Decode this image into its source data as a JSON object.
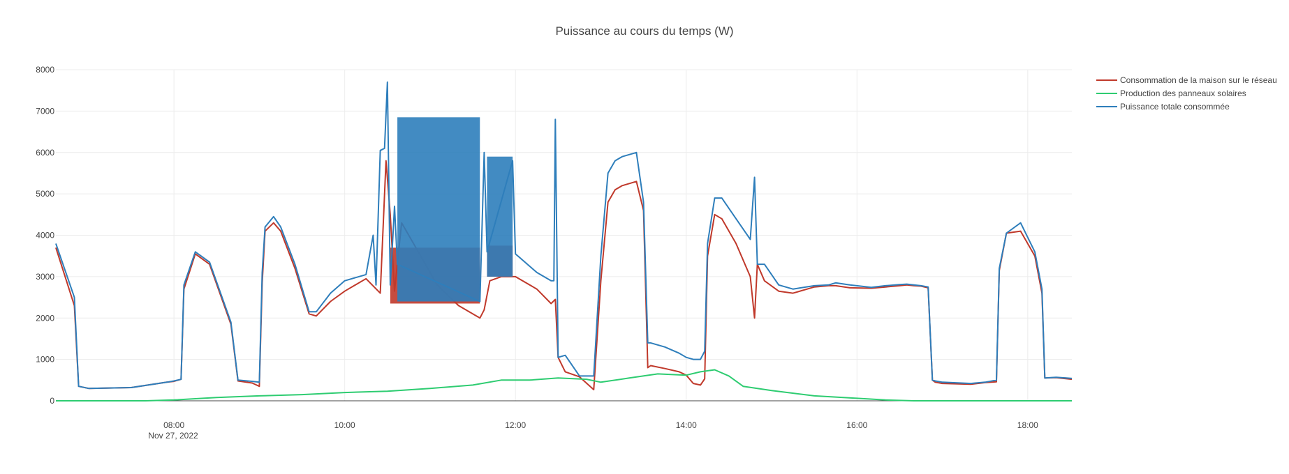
{
  "chart_data": {
    "type": "line",
    "title": "Puissance au cours du temps (W)",
    "xlabel": "",
    "ylabel": "",
    "date": "Nov 27, 2022",
    "xlim": [
      "06:37",
      "18:31"
    ],
    "ylim": [
      0,
      8000
    ],
    "x_ticks": [
      "08:00",
      "10:00",
      "12:00",
      "14:00",
      "16:00",
      "18:00"
    ],
    "y_ticks": [
      0,
      1000,
      2000,
      3000,
      4000,
      5000,
      6000,
      7000,
      8000
    ],
    "grid": true,
    "legend_position": "top-right",
    "series": [
      {
        "name": "Consommation de la maison sur le réseau",
        "color": "#c0392b",
        "x": [
          "06:37",
          "06:50",
          "06:53",
          "07:00",
          "07:30",
          "07:55",
          "08:00",
          "08:05",
          "08:07",
          "08:15",
          "08:25",
          "08:40",
          "08:45",
          "08:55",
          "09:00",
          "09:02",
          "09:04",
          "09:10",
          "09:15",
          "09:25",
          "09:35",
          "09:40",
          "09:50",
          "10:00",
          "10:15",
          "10:25",
          "10:29",
          "10:32",
          "10:35",
          "10:40",
          "10:45",
          "10:55",
          "11:05",
          "11:20",
          "11:35",
          "11:38",
          "11:42",
          "11:50",
          "12:00",
          "12:15",
          "12:25",
          "12:28",
          "12:30",
          "12:35",
          "12:45",
          "12:55",
          "13:00",
          "13:05",
          "13:10",
          "13:15",
          "13:25",
          "13:30",
          "13:33",
          "13:35",
          "13:45",
          "13:55",
          "14:00",
          "14:05",
          "14:10",
          "14:13",
          "14:15",
          "14:20",
          "14:25",
          "14:35",
          "14:45",
          "14:48",
          "14:50",
          "14:55",
          "15:05",
          "15:15",
          "15:30",
          "15:40",
          "15:45",
          "15:55",
          "16:10",
          "16:20",
          "16:30",
          "16:35",
          "16:40",
          "16:45",
          "16:50",
          "16:53",
          "16:55",
          "17:00",
          "17:20",
          "17:30",
          "17:38",
          "17:40",
          "17:45",
          "17:55",
          "18:05",
          "18:10",
          "18:12",
          "18:20",
          "18:31"
        ],
        "y": [
          3700,
          2300,
          350,
          300,
          320,
          450,
          470,
          520,
          2700,
          3550,
          3300,
          1850,
          480,
          430,
          350,
          2850,
          4100,
          4300,
          4100,
          3200,
          2100,
          2050,
          2400,
          2650,
          2950,
          2600,
          5800,
          4500,
          2650,
          4300,
          4000,
          3400,
          2800,
          2300,
          2000,
          2200,
          2900,
          3000,
          3000,
          2700,
          2350,
          2450,
          1050,
          700,
          580,
          270,
          2900,
          4800,
          5100,
          5200,
          5300,
          4600,
          800,
          850,
          780,
          700,
          620,
          420,
          380,
          530,
          3500,
          4500,
          4400,
          3800,
          3000,
          2000,
          3300,
          2900,
          2650,
          2600,
          2750,
          2780,
          2780,
          2730,
          2720,
          2750,
          2780,
          2800,
          2780,
          2770,
          2730,
          500,
          450,
          420,
          400,
          440,
          460,
          3150,
          4050,
          4100,
          3500,
          2600,
          550,
          560,
          520
        ],
        "spread": [
          [
            "10:32",
            "11:35",
            2350,
            3700
          ],
          [
            "11:40",
            "11:58",
            3000,
            3750
          ]
        ]
      },
      {
        "name": "Production des panneaux solaires",
        "color": "#2ecc71",
        "x": [
          "06:37",
          "07:40",
          "08:00",
          "08:30",
          "09:00",
          "09:30",
          "10:00",
          "10:30",
          "11:00",
          "11:30",
          "11:50",
          "12:10",
          "12:30",
          "12:50",
          "13:00",
          "13:20",
          "13:40",
          "14:00",
          "14:10",
          "14:20",
          "14:30",
          "14:40",
          "15:00",
          "15:30",
          "16:00",
          "16:20",
          "16:40",
          "18:31"
        ],
        "y": [
          0,
          0,
          20,
          80,
          120,
          150,
          200,
          230,
          300,
          380,
          500,
          500,
          550,
          520,
          450,
          550,
          650,
          620,
          700,
          750,
          600,
          350,
          250,
          120,
          60,
          20,
          0,
          0
        ]
      },
      {
        "name": "Puissance totale consommée",
        "color": "#2e7ebb",
        "x": [
          "06:37",
          "06:50",
          "06:53",
          "07:00",
          "07:30",
          "07:55",
          "08:00",
          "08:05",
          "08:07",
          "08:15",
          "08:25",
          "08:40",
          "08:45",
          "08:55",
          "09:00",
          "09:02",
          "09:04",
          "09:10",
          "09:15",
          "09:25",
          "09:35",
          "09:40",
          "09:50",
          "10:00",
          "10:15",
          "10:20",
          "10:22",
          "10:25",
          "10:28",
          "10:30",
          "10:32",
          "10:35",
          "10:37",
          "11:35",
          "11:38",
          "11:40",
          "11:58",
          "12:00",
          "12:15",
          "12:25",
          "12:27",
          "12:28",
          "12:30",
          "12:35",
          "12:45",
          "12:55",
          "13:00",
          "13:05",
          "13:10",
          "13:15",
          "13:25",
          "13:30",
          "13:33",
          "13:35",
          "13:45",
          "13:55",
          "14:00",
          "14:05",
          "14:10",
          "14:13",
          "14:15",
          "14:20",
          "14:25",
          "14:35",
          "14:45",
          "14:48",
          "14:50",
          "14:55",
          "15:05",
          "15:15",
          "15:30",
          "15:40",
          "15:45",
          "15:55",
          "16:10",
          "16:20",
          "16:30",
          "16:35",
          "16:40",
          "16:45",
          "16:50",
          "16:53",
          "16:55",
          "17:00",
          "17:20",
          "17:30",
          "17:38",
          "17:40",
          "17:45",
          "17:55",
          "18:05",
          "18:10",
          "18:12",
          "18:20",
          "18:31"
        ],
        "y": [
          3800,
          2500,
          350,
          300,
          320,
          450,
          480,
          520,
          2800,
          3600,
          3350,
          1900,
          500,
          470,
          450,
          3100,
          4200,
          4450,
          4200,
          3300,
          2150,
          2150,
          2600,
          2900,
          3050,
          4000,
          2800,
          6050,
          6100,
          7700,
          2800,
          4700,
          3300,
          2400,
          6000,
          3600,
          5800,
          3550,
          3100,
          2900,
          2900,
          6800,
          1050,
          1100,
          600,
          600,
          3500,
          5500,
          5800,
          5900,
          6000,
          4800,
          1400,
          1400,
          1300,
          1150,
          1050,
          1000,
          1000,
          1200,
          3800,
          4900,
          4900,
          4400,
          3900,
          5400,
          3300,
          3300,
          2800,
          2700,
          2780,
          2800,
          2850,
          2800,
          2740,
          2780,
          2810,
          2820,
          2800,
          2780,
          2750,
          500,
          480,
          450,
          420,
          450,
          500,
          3200,
          4050,
          4300,
          3600,
          2700,
          550,
          570,
          540
        ],
        "spread": [
          [
            "10:37",
            "11:35",
            2400,
            6850
          ],
          [
            "11:40",
            "11:58",
            3000,
            5900
          ]
        ]
      }
    ]
  }
}
